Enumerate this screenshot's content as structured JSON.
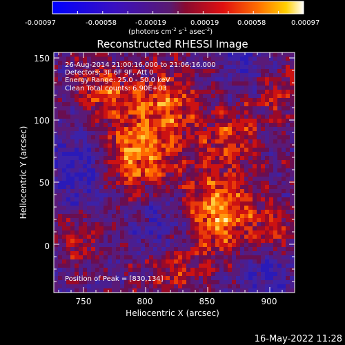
{
  "colorbar": {
    "tick_labels": [
      "-0.00097",
      "-0.00058",
      "-0.00019",
      "0.00019",
      "0.00058",
      "0.00097"
    ],
    "units_prefix": "(photons cm",
    "units_exp1": "-2",
    "units_mid": " s",
    "units_exp2": "-1",
    "units_mid2": " asec",
    "units_exp3": "-2",
    "units_suffix": ")"
  },
  "plot": {
    "title": "Reconstructed RHESSI Image",
    "xlabel": "Heliocentric X (arcsec)",
    "ylabel": "Heliocentric Y (arcsec)",
    "x_tick_labels": [
      "750",
      "800",
      "850",
      "900"
    ],
    "y_tick_labels": [
      "150",
      "100",
      "50",
      "0"
    ],
    "x_range": [
      726,
      920
    ],
    "y_range": [
      -38,
      156
    ]
  },
  "annotations": {
    "line1": "26-Aug-2014 21:00:16.000 to 21:06:16.000",
    "line2": "Detectors: 3F 6F 9F, Att 0",
    "line3": "Energy Range: 25.0 - 50.0 keV",
    "line4": "Clean     Total counts: 6.90E+03",
    "peak": "Position of Peak = [830,134]"
  },
  "footer": {
    "date": "16-May-2022 11:28"
  }
}
